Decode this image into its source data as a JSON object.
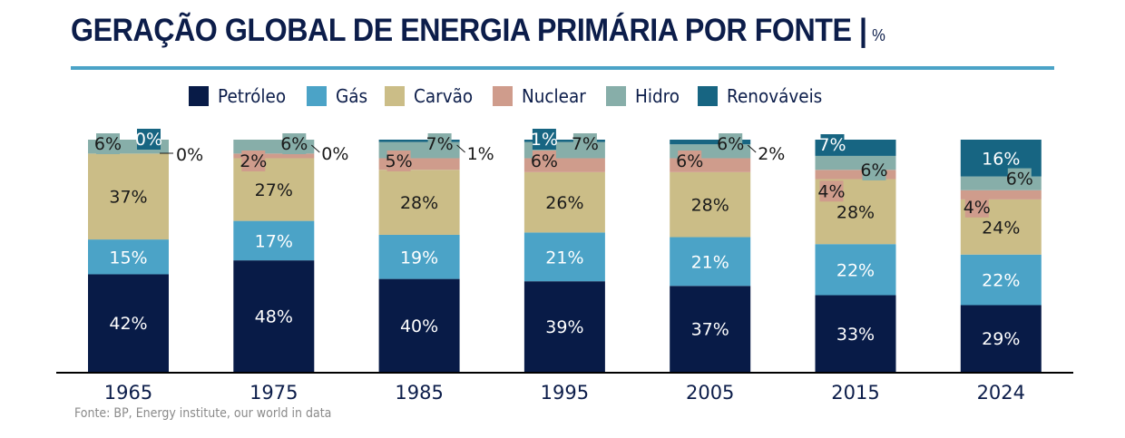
{
  "header": {
    "title": "GERAÇÃO GLOBAL DE ENERGIA PRIMÁRIA POR FONTE |",
    "unit": "%"
  },
  "source": "Fonte: BP, Energy institute, our world in data",
  "colors": {
    "Petróleo": "#081b47",
    "Gás": "#4ba3c7",
    "Carvão": "#cbbd87",
    "Nuclear": "#cf9c8c",
    "Hidro": "#87aea9",
    "Renováveis": "#176582",
    "axis": "#000000",
    "year_label": "#0c1d4a"
  },
  "chart_data": {
    "type": "bar",
    "stacked": true,
    "title": "GERAÇÃO GLOBAL DE ENERGIA PRIMÁRIA POR FONTE | %",
    "xlabel": "",
    "ylabel": "",
    "ylim": [
      0,
      100
    ],
    "grid": false,
    "legend_position": "top-center",
    "categories": [
      "1965",
      "1975",
      "1985",
      "1995",
      "2005",
      "2015",
      "2024"
    ],
    "series": [
      {
        "name": "Petróleo",
        "values": [
          42,
          48,
          40,
          39,
          37,
          33,
          29
        ]
      },
      {
        "name": "Gás",
        "values": [
          15,
          17,
          19,
          21,
          21,
          22,
          22
        ]
      },
      {
        "name": "Carvão",
        "values": [
          37,
          27,
          28,
          26,
          28,
          28,
          24
        ]
      },
      {
        "name": "Nuclear",
        "values": [
          0,
          2,
          5,
          6,
          6,
          4,
          4
        ]
      },
      {
        "name": "Hidro",
        "values": [
          6,
          6,
          7,
          7,
          6,
          6,
          6
        ]
      },
      {
        "name": "Renováveis",
        "values": [
          0,
          0,
          1,
          1,
          2,
          7,
          16
        ]
      }
    ],
    "data_labels": {
      "Petróleo": [
        "42%",
        "48%",
        "40%",
        "39%",
        "37%",
        "33%",
        "29%"
      ],
      "Gás": [
        "15%",
        "17%",
        "19%",
        "21%",
        "21%",
        "22%",
        "22%"
      ],
      "Carvão": [
        "37%",
        "27%",
        "28%",
        "26%",
        "28%",
        "28%",
        "24%"
      ],
      "Nuclear": [
        "0%",
        "2%",
        "5%",
        "6%",
        "6%",
        "4%",
        "4%"
      ],
      "Hidro": [
        "6%",
        "6%",
        "7%",
        "7%",
        "6%",
        "6%",
        "6%"
      ],
      "Renováveis": [
        "0%",
        "0%",
        "1%",
        "1%",
        "2%",
        "7%",
        "16%"
      ]
    }
  }
}
